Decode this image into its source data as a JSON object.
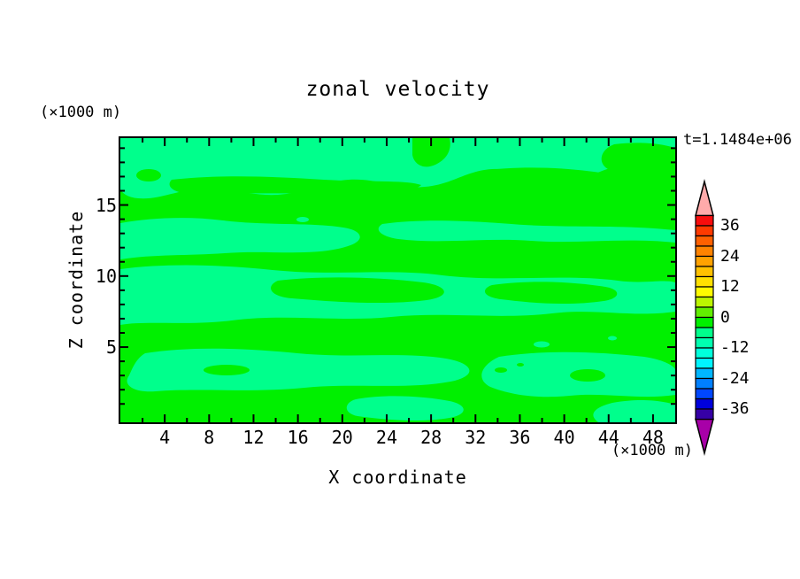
{
  "title": "zonal velocity",
  "timestamp": "t=1.1484e+06",
  "axes": {
    "x": {
      "label": "X coordinate",
      "units": "(×1000 m)",
      "major_ticks": [
        4,
        8,
        12,
        16,
        20,
        24,
        28,
        32,
        36,
        40,
        44,
        48
      ],
      "minor_step": 2,
      "range": [
        0,
        50
      ]
    },
    "y": {
      "label": "Z coordinate",
      "units": "(×1000 m)",
      "major_ticks": [
        5,
        10,
        15
      ],
      "minor_step": 1,
      "range": [
        0,
        19.8
      ]
    }
  },
  "colorbar": {
    "labels": [
      36,
      24,
      12,
      0,
      -12,
      -24,
      -36
    ],
    "level_step": 4,
    "level_max": 40,
    "level_min": -40,
    "colors_top_to_bottom": [
      "#F80D0D",
      "#FF3A00",
      "#FF6000",
      "#FF8300",
      "#FFA200",
      "#FFC100",
      "#FFE000",
      "#FFFB00",
      "#BCF500",
      "#62EE00",
      "#00F000",
      "#00FF8C",
      "#00FFB0",
      "#00FFDC",
      "#00F4FF",
      "#00B6FF",
      "#0080FF",
      "#0047FF",
      "#0000DC",
      "#3600A6"
    ],
    "over_color": "#FFAAAA",
    "under_color": "#A800A8"
  },
  "field": {
    "positive_color": "#00F000",
    "negative_color": "#00FF8C"
  },
  "chart_data": {
    "type": "heatmap",
    "subtype": "filled-contour",
    "title": "zonal velocity",
    "annotation": "t=1.1484e+06",
    "xlabel": "X coordinate (×1000 m)",
    "ylabel": "Z coordinate (×1000 m)",
    "xlim": [
      0,
      50
    ],
    "ylim": [
      0,
      19.8
    ],
    "x_major_ticks": [
      4,
      8,
      12,
      16,
      20,
      24,
      28,
      32,
      36,
      40,
      44,
      48
    ],
    "y_major_ticks": [
      5,
      10,
      15
    ],
    "grid": false,
    "legend_position": "right-colorbar",
    "contour_levels": [
      -40,
      -36,
      -32,
      -28,
      -24,
      -20,
      -16,
      -12,
      -8,
      -4,
      0,
      4,
      8,
      12,
      16,
      20,
      24,
      28,
      32,
      36,
      40
    ],
    "colorbar_tick_labels": [
      36,
      24,
      12,
      0,
      -12,
      -24,
      -36
    ],
    "visible_field_bands": [
      {
        "value_range": [
          0,
          4
        ],
        "color": "#00F000",
        "approx_coverage": "≈55% of plot, wavy horizontal streaks"
      },
      {
        "value_range": [
          -4,
          0
        ],
        "color": "#00FF8C",
        "approx_coverage": "≈45% of plot, wavy horizontal streaks"
      }
    ],
    "description": "Zonal velocity field at t=1.1484e+06; values everywhere within -4..4, displayed as interlocking horizontal green / spring-green contour bands"
  }
}
